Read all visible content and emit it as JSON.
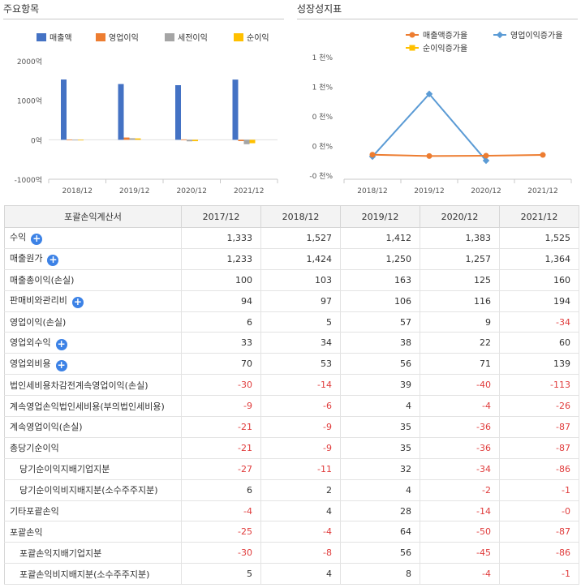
{
  "panels": {
    "left_title": "주요항목",
    "right_title": "성장성지표"
  },
  "left_chart": {
    "type": "bar",
    "legend": [
      "매출액",
      "영업이익",
      "세전이익",
      "순이익"
    ],
    "colors": [
      "#4472c4",
      "#ed7d31",
      "#a5a5a5",
      "#ffc000"
    ],
    "categories": [
      "2018/12",
      "2019/12",
      "2020/12",
      "2021/12"
    ],
    "series": [
      {
        "name": "매출액",
        "values": [
          1527,
          1412,
          1383,
          1525
        ]
      },
      {
        "name": "영업이익",
        "values": [
          5,
          57,
          9,
          -34
        ]
      },
      {
        "name": "세전이익",
        "values": [
          -14,
          39,
          -40,
          -113
        ]
      },
      {
        "name": "순이익",
        "values": [
          -9,
          35,
          -36,
          -87
        ]
      }
    ],
    "yticks": [
      "2000억",
      "1000억",
      "0억",
      "-1000억"
    ],
    "ylim": [
      -1000,
      2000
    ]
  },
  "right_chart": {
    "type": "line",
    "legend": [
      "매출액증가율",
      "영업이익증가율",
      "순이익증가율"
    ],
    "colors": [
      "#ed7d31",
      "#5b9bd5",
      "#ffc000"
    ],
    "categories": [
      "2018/12",
      "2019/12",
      "2020/12",
      "2021/12"
    ],
    "series": [
      {
        "name": "매출액증가율",
        "values": [
          14.6,
          -7.5,
          -2.1,
          10.3
        ]
      },
      {
        "name": "영업이익증가율",
        "values": [
          -16.7,
          1040,
          -84.2,
          null
        ]
      },
      {
        "name": "순이익증가율",
        "values": [
          null,
          null,
          null,
          null
        ]
      }
    ],
    "yticks": [
      "1 천%",
      "1 천%",
      "0 천%",
      "0 천%",
      "-0 천%"
    ],
    "ylim": [
      -400,
      1600
    ]
  },
  "chart_data": [
    {
      "type": "bar",
      "categories": [
        "2018/12",
        "2019/12",
        "2020/12",
        "2021/12"
      ],
      "series": [
        {
          "name": "매출액",
          "values": [
            1527,
            1412,
            1383,
            1525
          ]
        },
        {
          "name": "영업이익",
          "values": [
            5,
            57,
            9,
            -34
          ]
        },
        {
          "name": "세전이익",
          "values": [
            -14,
            39,
            -40,
            -113
          ]
        },
        {
          "name": "순이익",
          "values": [
            -9,
            35,
            -36,
            -87
          ]
        }
      ],
      "title": "주요항목",
      "ylim": [
        -1000,
        2000
      ]
    },
    {
      "type": "line",
      "categories": [
        "2018/12",
        "2019/12",
        "2020/12",
        "2021/12"
      ],
      "series": [
        {
          "name": "매출액증가율",
          "values": [
            14.6,
            -7.5,
            -2.1,
            10.3
          ]
        },
        {
          "name": "영업이익증가율",
          "values": [
            -16.7,
            1040,
            -84.2,
            null
          ]
        },
        {
          "name": "순이익증가율",
          "values": [
            null,
            null,
            null,
            null
          ]
        }
      ],
      "title": "성장성지표"
    }
  ],
  "table": {
    "header": [
      "포괄손익계산서",
      "2017/12",
      "2018/12",
      "2019/12",
      "2020/12",
      "2021/12"
    ],
    "rows": [
      {
        "label": "수익",
        "expand": true,
        "sub": false,
        "values": [
          "1,333",
          "1,527",
          "1,412",
          "1,383",
          "1,525"
        ]
      },
      {
        "label": "매출원가",
        "expand": true,
        "sub": false,
        "values": [
          "1,233",
          "1,424",
          "1,250",
          "1,257",
          "1,364"
        ]
      },
      {
        "label": "매출총이익(손실)",
        "expand": false,
        "sub": false,
        "values": [
          "100",
          "103",
          "163",
          "125",
          "160"
        ]
      },
      {
        "label": "판매비와관리비",
        "expand": true,
        "sub": false,
        "values": [
          "94",
          "97",
          "106",
          "116",
          "194"
        ]
      },
      {
        "label": "영업이익(손실)",
        "expand": false,
        "sub": false,
        "values": [
          "6",
          "5",
          "57",
          "9",
          "-34"
        ]
      },
      {
        "label": "영업외수익",
        "expand": true,
        "sub": false,
        "values": [
          "33",
          "34",
          "38",
          "22",
          "60"
        ]
      },
      {
        "label": "영업외비용",
        "expand": true,
        "sub": false,
        "values": [
          "70",
          "53",
          "56",
          "71",
          "139"
        ]
      },
      {
        "label": "법인세비용차감전계속영업이익(손실)",
        "expand": false,
        "sub": false,
        "values": [
          "-30",
          "-14",
          "39",
          "-40",
          "-113"
        ]
      },
      {
        "label": "계속영업손익법인세비용(부의법인세비용)",
        "expand": false,
        "sub": false,
        "values": [
          "-9",
          "-6",
          "4",
          "-4",
          "-26"
        ]
      },
      {
        "label": "계속영업이익(손실)",
        "expand": false,
        "sub": false,
        "values": [
          "-21",
          "-9",
          "35",
          "-36",
          "-87"
        ]
      },
      {
        "label": "총당기순이익",
        "expand": false,
        "sub": false,
        "values": [
          "-21",
          "-9",
          "35",
          "-36",
          "-87"
        ]
      },
      {
        "label": "당기순이익지배기업지분",
        "expand": false,
        "sub": true,
        "values": [
          "-27",
          "-11",
          "32",
          "-34",
          "-86"
        ]
      },
      {
        "label": "당기순이익비지배지분(소수주주지분)",
        "expand": false,
        "sub": true,
        "values": [
          "6",
          "2",
          "4",
          "-2",
          "-1"
        ]
      },
      {
        "label": "기타포괄손익",
        "expand": false,
        "sub": false,
        "values": [
          "-4",
          "4",
          "28",
          "-14",
          "-0"
        ]
      },
      {
        "label": "포괄손익",
        "expand": false,
        "sub": false,
        "values": [
          "-25",
          "-4",
          "64",
          "-50",
          "-87"
        ]
      },
      {
        "label": "포괄손익지배기업지분",
        "expand": false,
        "sub": true,
        "values": [
          "-30",
          "-8",
          "56",
          "-45",
          "-86"
        ]
      },
      {
        "label": "포괄손익비지배지분(소수주주지분)",
        "expand": false,
        "sub": true,
        "values": [
          "5",
          "4",
          "8",
          "-4",
          "-1"
        ]
      }
    ]
  }
}
